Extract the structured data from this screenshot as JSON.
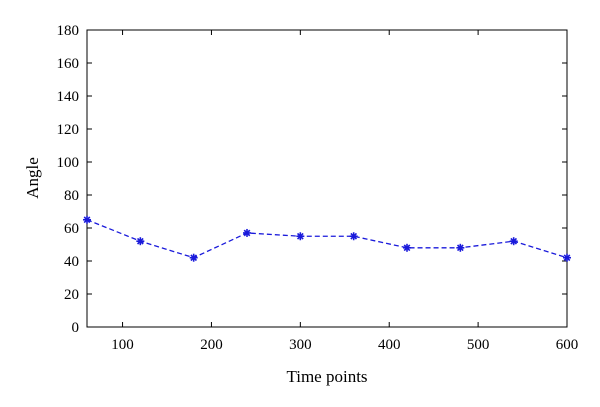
{
  "chart_data": {
    "type": "line",
    "xlabel": "Time points",
    "ylabel": "Angle",
    "xlim": [
      60,
      600
    ],
    "ylim": [
      0,
      180
    ],
    "x_ticks": [
      100,
      200,
      300,
      400,
      500,
      600
    ],
    "y_ticks": [
      0,
      20,
      40,
      60,
      80,
      100,
      120,
      140,
      160,
      180
    ],
    "grid": false,
    "line_style": "dashed",
    "marker": "asterisk",
    "series": [
      {
        "color": "#1a1adb",
        "x": [
          60,
          120,
          180,
          240,
          300,
          360,
          420,
          480,
          540,
          600
        ],
        "y": [
          65,
          52,
          42,
          57,
          55,
          55,
          48,
          48,
          52,
          42
        ]
      }
    ]
  }
}
